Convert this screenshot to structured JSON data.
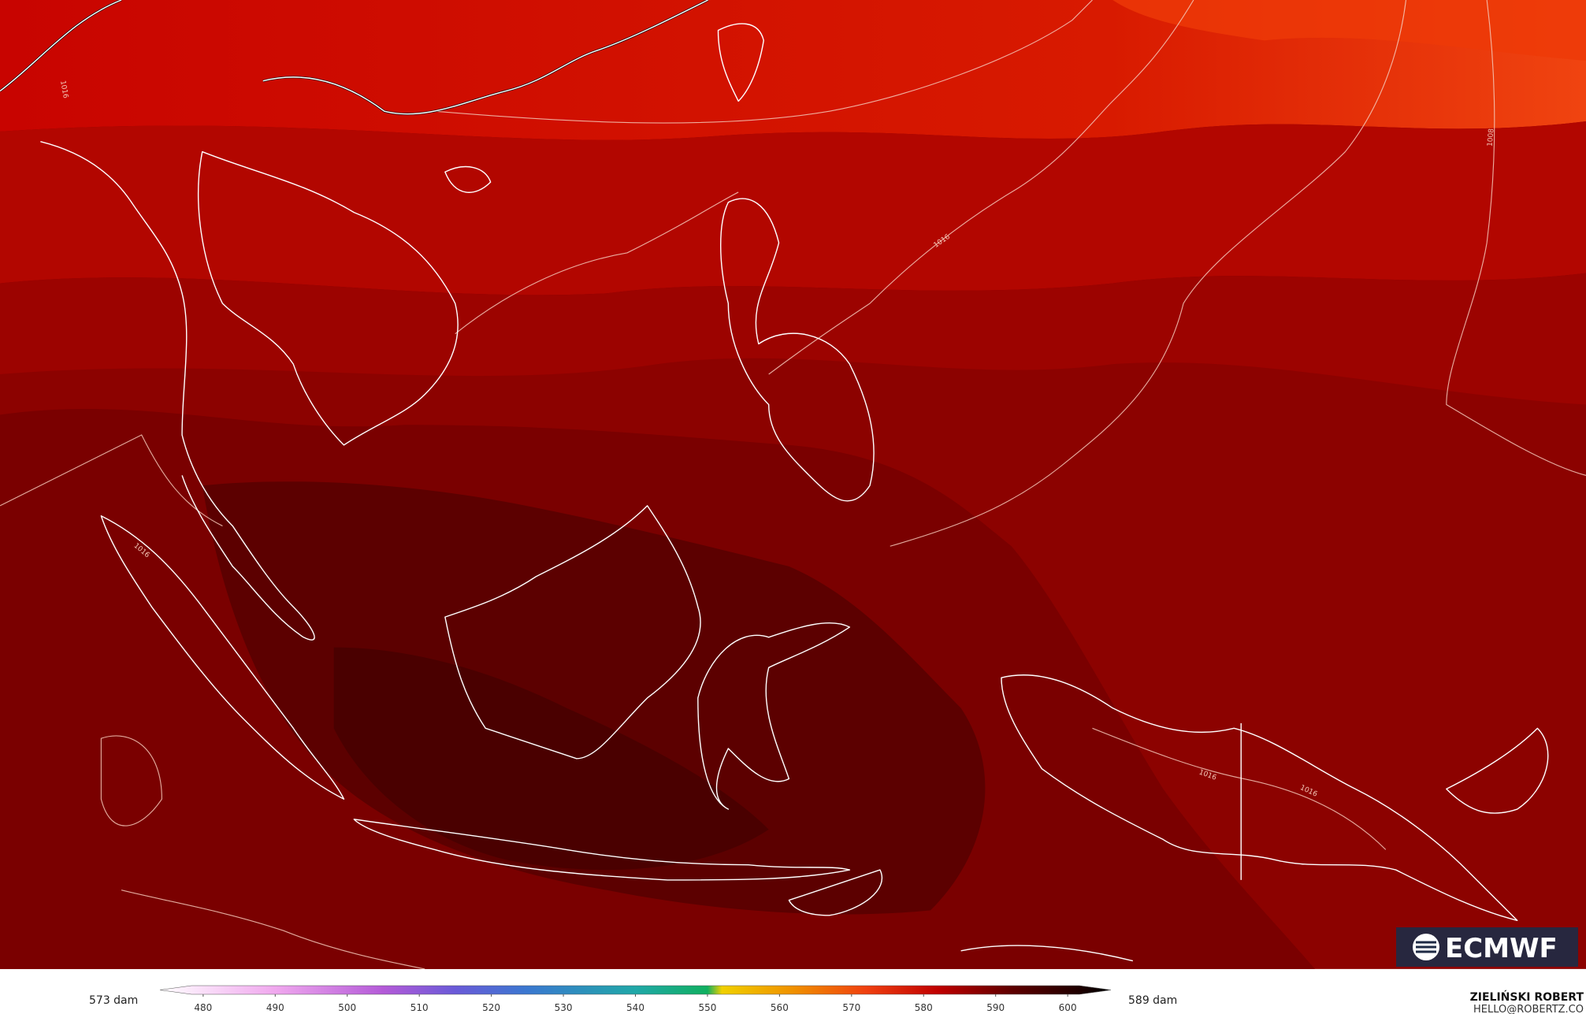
{
  "map": {
    "isobar_labels": [
      1016,
      1016,
      1016,
      1008,
      1016,
      1016
    ],
    "logo": "ECMWF",
    "colorbar": {
      "min_label": "573 dam",
      "max_label": "589 dam",
      "lim": [
        474,
        606
      ],
      "ticks": [
        480,
        490,
        500,
        510,
        520,
        530,
        540,
        550,
        560,
        570,
        580,
        590,
        600
      ],
      "color_stops": [
        {
          "value": 474,
          "color": "#ffffff"
        },
        {
          "value": 490,
          "color": "#f0a8ee"
        },
        {
          "value": 505,
          "color": "#b45ad8"
        },
        {
          "value": 515,
          "color": "#6a5ad8"
        },
        {
          "value": 525,
          "color": "#3a78d0"
        },
        {
          "value": 540,
          "color": "#20a8a8"
        },
        {
          "value": 550,
          "color": "#10b060"
        },
        {
          "value": 552,
          "color": "#f0d000"
        },
        {
          "value": 562,
          "color": "#f09000"
        },
        {
          "value": 572,
          "color": "#f04010"
        },
        {
          "value": 582,
          "color": "#c00000"
        },
        {
          "value": 592,
          "color": "#600000"
        },
        {
          "value": 606,
          "color": "#000000"
        }
      ]
    },
    "credit": {
      "name": "ZIELIŃSKI ROBERT",
      "email": "HELLO@ROBERTZ.CO"
    }
  }
}
